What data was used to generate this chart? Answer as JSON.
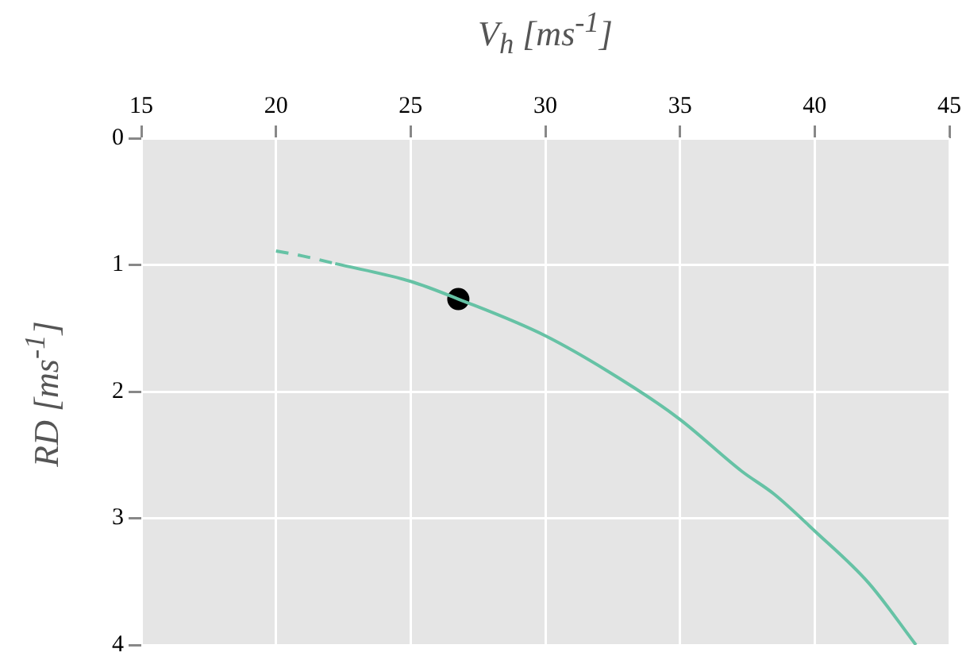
{
  "chart_data": {
    "type": "line",
    "xlabel": "V$_{h}$ [ms$^{-1}$]",
    "ylabel": "RD [ms$^{-1}$]",
    "xlim": [
      15,
      45
    ],
    "xticks": [
      15,
      20,
      25,
      30,
      35,
      40,
      45
    ],
    "ylim": [
      4,
      0
    ],
    "yticks": [
      0,
      1,
      2,
      3,
      4
    ],
    "grid": true,
    "legend": false,
    "series": [
      {
        "color": "#66c2a5",
        "line_style": "dashed",
        "marker": "none",
        "x": [
          20,
          21,
          22.2
        ],
        "values": [
          0.89,
          0.93,
          0.99
        ]
      },
      {
        "color": "#66c2a5",
        "line_style": "solid",
        "marker": "none",
        "x": [
          22.2,
          25,
          26.77,
          30,
          33.3,
          35,
          37.3,
          38.5,
          40,
          42,
          43.76
        ],
        "values": [
          0.99,
          1.13,
          1.27,
          1.56,
          1.97,
          2.22,
          2.63,
          2.81,
          3.1,
          3.51,
          4
        ]
      },
      {
        "type": "scatter",
        "color": "#000000",
        "marker": "circle",
        "x": [
          26.77
        ],
        "values": [
          1.27
        ]
      }
    ]
  }
}
